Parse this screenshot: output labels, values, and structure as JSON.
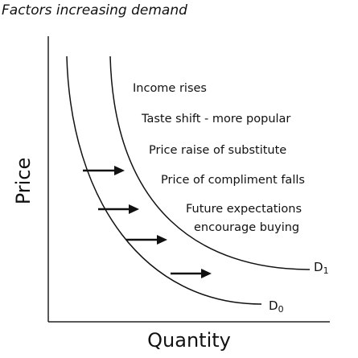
{
  "title": "Factors increasing demand",
  "axes": {
    "y_label": "Price",
    "x_label": "Quantity"
  },
  "curves": [
    {
      "label": "D",
      "subscript": "0"
    },
    {
      "label": "D",
      "subscript": "1"
    }
  ],
  "factors": [
    "Income rises",
    "Taste shift - more popular",
    "Price raise of substitute",
    "Price of compliment falls",
    "Future expectations",
    "encourage buying"
  ]
}
